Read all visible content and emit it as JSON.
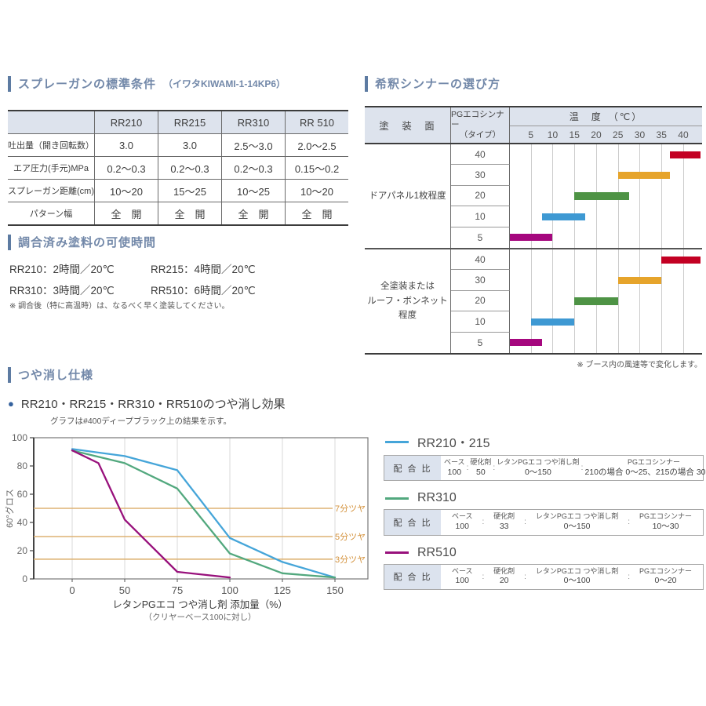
{
  "accent_color": "#5d7ba2",
  "title_color": "#7288a9",
  "sections": {
    "spray": {
      "title": "スプレーガンの標準条件",
      "subtitle": "（イワタKIWAMI-1-14KP6）",
      "table": {
        "columns": [
          "",
          "RR210",
          "RR215",
          "RR310",
          "RR 510"
        ],
        "rows": [
          {
            "label": "吐出量（開き回転数）",
            "values": [
              "3.0",
              "3.0",
              "2.5～3.0",
              "2.0～2.5"
            ]
          },
          {
            "label": "エア圧力(手元)MPa",
            "values": [
              "0.2～0.3",
              "0.2～0.3",
              "0.2～0.3",
              "0.15～0.2"
            ]
          },
          {
            "label": "スプレーガン距離(cm)",
            "values": [
              "10～20",
              "15～25",
              "10～25",
              "10～20"
            ]
          },
          {
            "label": "パターン幅",
            "values": [
              "全　開",
              "全　開",
              "全　開",
              "全　開"
            ]
          }
        ]
      }
    },
    "potlife": {
      "title": "調合済み塗料の可使時間",
      "items": [
        "RR210：2時間／20℃",
        "RR215：4時間／20℃",
        "RR310：3時間／20℃",
        "RR510：6時間／20℃"
      ],
      "note": "※ 調合後（特に高温時）は、なるべく早く塗装してください。"
    },
    "thinner": {
      "title": "希釈シンナーの選び方",
      "header": {
        "surface": "塗　装　面",
        "type_lines": [
          "PGエコシンナー",
          "（タイプ）"
        ],
        "temp": "温　度　（℃）"
      },
      "note": "※ ブース内の風速等で変化します。"
    },
    "matte": {
      "title": "つや消し仕様",
      "subtitle": "RR210・RR215・RR310・RR510のつや消し効果",
      "subnote": "グラフは#400ディープブラック上の結果を示す。",
      "legend": [
        {
          "name": "RR210・215",
          "ratio_label": "配 合 比",
          "cols": [
            {
              "label": "ベース",
              "value": "100"
            },
            {
              "label": "硬化剤",
              "value": "50"
            },
            {
              "label": "レタンPGエコ つや消し剤",
              "value": "0～150"
            },
            {
              "label": "PGエコシンナー",
              "value": "210の場合 0～25、215の場合 30～60"
            }
          ]
        },
        {
          "name": "RR310",
          "ratio_label": "配 合 比",
          "cols": [
            {
              "label": "ベース",
              "value": "100"
            },
            {
              "label": "硬化剤",
              "value": "33"
            },
            {
              "label": "レタンPGエコ つや消し剤",
              "value": "0～150"
            },
            {
              "label": "PGエコシンナー",
              "value": "10～30"
            }
          ]
        },
        {
          "name": "RR510",
          "ratio_label": "配 合 比",
          "cols": [
            {
              "label": "ベース",
              "value": "100"
            },
            {
              "label": "硬化剤",
              "value": "20"
            },
            {
              "label": "レタンPGエコ つや消し剤",
              "value": "0～100"
            },
            {
              "label": "PGエコシンナー",
              "value": "0～20"
            }
          ]
        }
      ]
    }
  },
  "chart_data": [
    {
      "type": "bar",
      "title": "希釈シンナーの選び方",
      "xlabel": "温度（℃）",
      "x_ticks": [
        5,
        10,
        15,
        20,
        25,
        30,
        35,
        40
      ],
      "xlim": [
        0,
        44
      ],
      "groups": [
        {
          "surface_lines": [
            "ドアパネル1枚程度"
          ],
          "bars": [
            {
              "type": "40",
              "range": [
                37,
                44
              ],
              "color": "#c30023"
            },
            {
              "type": "30",
              "range": [
                25,
                37
              ],
              "color": "#e6a42b"
            },
            {
              "type": "20",
              "range": [
                15,
                27.5
              ],
              "color": "#4e9345"
            },
            {
              "type": "10",
              "range": [
                7.5,
                17.5
              ],
              "color": "#3e99d3"
            },
            {
              "type": "5",
              "range": [
                0,
                10
              ],
              "color": "#a5077e"
            }
          ]
        },
        {
          "surface_lines": [
            "全塗装または",
            "ルーフ・ボンネット",
            "程度"
          ],
          "bars": [
            {
              "type": "40",
              "range": [
                35,
                44
              ],
              "color": "#c30023"
            },
            {
              "type": "30",
              "range": [
                25,
                35
              ],
              "color": "#e6a42b"
            },
            {
              "type": "20",
              "range": [
                15,
                25
              ],
              "color": "#4e9345"
            },
            {
              "type": "10",
              "range": [
                5,
                15
              ],
              "color": "#3e99d3"
            },
            {
              "type": "5",
              "range": [
                0,
                7.5
              ],
              "color": "#a5077e"
            }
          ]
        }
      ],
      "note": "※ ブース内の風速等で変化します。"
    },
    {
      "type": "line",
      "title": "RR210・RR215・RR310・RR510のつや消し効果",
      "xlabel": "レタンPGエコ つや消し剤 添加量（%）",
      "xlabel_note": "（クリヤーベース100に対し）",
      "ylabel": "60°グロス",
      "x_ticks": [
        0,
        50,
        75,
        100,
        125,
        150
      ],
      "x_ticks_equally_spaced": true,
      "y_ticks": [
        0,
        20,
        40,
        60,
        80,
        100
      ],
      "ylim": [
        0,
        100
      ],
      "grid": "vertical-only",
      "series": [
        {
          "name": "RR210・215",
          "color": "#45a5d9",
          "points": [
            [
              0,
              92
            ],
            [
              50,
              87
            ],
            [
              75,
              77
            ],
            [
              100,
              29
            ],
            [
              125,
              12
            ],
            [
              150,
              1
            ]
          ]
        },
        {
          "name": "RR310",
          "color": "#52a87e",
          "points": [
            [
              0,
              91
            ],
            [
              50,
              82
            ],
            [
              75,
              64
            ],
            [
              100,
              18
            ],
            [
              125,
              4
            ],
            [
              150,
              1
            ]
          ]
        },
        {
          "name": "RR510",
          "color": "#98117c",
          "points": [
            [
              0,
              91
            ],
            [
              25,
              82
            ],
            [
              50,
              42
            ],
            [
              75,
              5
            ],
            [
              100,
              1
            ]
          ]
        }
      ],
      "thresholds": [
        {
          "value": 50,
          "label": "7分ツヤ"
        },
        {
          "value": 30,
          "label": "5分ツヤ"
        },
        {
          "value": 14,
          "label": "3分ツヤ"
        }
      ],
      "threshold_color": "#ddb273",
      "threshold_label_color": "#d4933e"
    }
  ]
}
